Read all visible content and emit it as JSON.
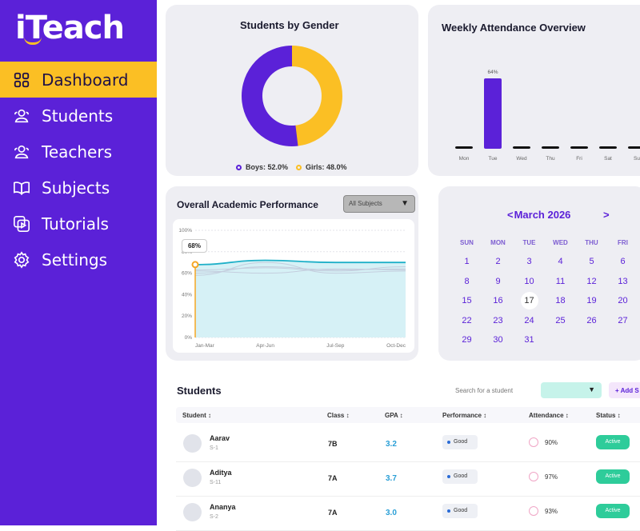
{
  "app": {
    "logo": "iTeach"
  },
  "sidebar": {
    "items": [
      {
        "label": "Dashboard",
        "icon": "grid-icon",
        "active": true
      },
      {
        "label": "Students",
        "icon": "users-icon"
      },
      {
        "label": "Teachers",
        "icon": "users-icon"
      },
      {
        "label": "Subjects",
        "icon": "book-icon"
      },
      {
        "label": "Tutorials",
        "icon": "video-icon"
      },
      {
        "label": "Settings",
        "icon": "gear-icon"
      }
    ]
  },
  "gender": {
    "title": "Students by Gender",
    "boys_label": "Boys: 52.0%",
    "girls_label": "Girls: 48.0%",
    "boys_value": 52.0,
    "girls_value": 48.0,
    "boys_color": "#5b21d8",
    "girls_color": "#fbbf24"
  },
  "attendance": {
    "title": "Weekly Attendance Overview",
    "chart_data": {
      "type": "bar",
      "categories": [
        "Mon",
        "Tue",
        "Wed",
        "Thu",
        "Fri",
        "Sat",
        "Su"
      ],
      "values": [
        0,
        64,
        0,
        0,
        0,
        0,
        0
      ],
      "data_labels": [
        "",
        "64%",
        "",
        "",
        "",
        "",
        ""
      ],
      "ylim": [
        0,
        64
      ],
      "bar_color": "#5b21d8"
    }
  },
  "performance": {
    "title": "Overall Academic Performance",
    "filter_label": "All Subjects",
    "tooltip": "68%",
    "chart_data": {
      "type": "line",
      "categories": [
        "Jan-Mar",
        "Apr-Jun",
        "Jul-Sep",
        "Oct-Dec"
      ],
      "y_ticks": [
        "0%",
        "20%",
        "40%",
        "60%",
        "80%",
        "100%"
      ],
      "ylim": [
        0,
        100
      ],
      "series": [
        {
          "values": [
            68,
            72,
            70,
            70
          ],
          "color": "#1fb0c8"
        },
        {
          "values": [
            60,
            66,
            63,
            64
          ],
          "color": "#c4cede"
        },
        {
          "values": [
            63,
            65,
            62,
            66
          ],
          "color": "#c4cede"
        },
        {
          "values": [
            58,
            70,
            60,
            62
          ],
          "color": "#c4cede"
        },
        {
          "values": [
            62,
            60,
            64,
            63
          ],
          "color": "#c4cede"
        }
      ]
    }
  },
  "calendar": {
    "month": "March 2026",
    "prev": "<",
    "next": ">",
    "dow": [
      "SUN",
      "MON",
      "TUE",
      "WED",
      "THU",
      "FRI"
    ],
    "days": [
      "1",
      "2",
      "3",
      "4",
      "5",
      "6",
      "8",
      "9",
      "10",
      "11",
      "12",
      "13",
      "15",
      "16",
      "17",
      "18",
      "19",
      "20",
      "22",
      "23",
      "24",
      "25",
      "26",
      "27",
      "29",
      "30",
      "31"
    ],
    "today": "17"
  },
  "students": {
    "title": "Students",
    "search_placeholder": "Search for a student",
    "add_label": "+ Add S",
    "columns": [
      "Student ↕",
      "Class ↕",
      "GPA ↕",
      "Performance ↕",
      "Attendance ↕",
      "Status ↕"
    ],
    "rows": [
      {
        "name": "Aarav",
        "id": "S-1",
        "class": "7B",
        "gpa": "3.2",
        "performance": "Good",
        "attendance": "90%",
        "status": "Active"
      },
      {
        "name": "Aditya",
        "id": "S-11",
        "class": "7A",
        "gpa": "3.7",
        "performance": "Good",
        "attendance": "97%",
        "status": "Active"
      },
      {
        "name": "Ananya",
        "id": "S-2",
        "class": "7A",
        "gpa": "3.0",
        "performance": "Good",
        "attendance": "93%",
        "status": "Active"
      }
    ]
  }
}
